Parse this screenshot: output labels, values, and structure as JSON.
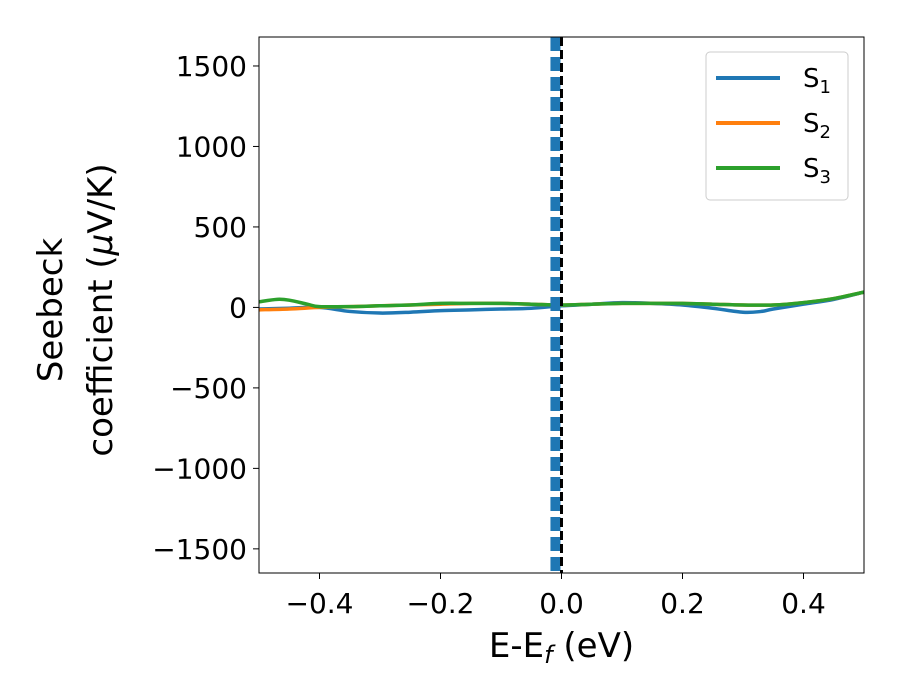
{
  "chart_data": {
    "type": "line",
    "xlabel": "E-E_f (eV)",
    "xlabel_parts": {
      "main": "E-E",
      "sub": "f",
      "unit": " (eV)"
    },
    "ylabel": "Seebeck coefficient (μV/K)",
    "ylabel_lines": {
      "line1": "Seebeck",
      "line2_prefix": "coefficient  (",
      "line2_mu": "μ",
      "line2_suffix": "V/K)"
    },
    "xlim": [
      -0.5,
      0.5
    ],
    "ylim": [
      -1650,
      1680
    ],
    "xticks": [
      -0.4,
      -0.2,
      0.0,
      0.2,
      0.4
    ],
    "xtick_labels": [
      "−0.4",
      "−0.2",
      "0.0",
      "0.2",
      "0.4"
    ],
    "yticks": [
      -1500,
      -1000,
      -500,
      0,
      500,
      1000,
      1500
    ],
    "ytick_labels": [
      "−1500",
      "−1000",
      "−500",
      "0",
      "500",
      "1000",
      "1500"
    ],
    "grid": false,
    "legend_position": "top-right",
    "vertical_lines": [
      {
        "x": -0.01,
        "style": "dashed",
        "color": "#1f77b4"
      },
      {
        "x": 0.0,
        "style": "dashed",
        "color": "#000000"
      }
    ],
    "series": [
      {
        "name": "S1",
        "label_main": "S",
        "label_sub": "1",
        "color": "#1f77b4",
        "x": [
          -0.5,
          -0.45,
          -0.4,
          -0.35,
          -0.3,
          -0.25,
          -0.2,
          -0.15,
          -0.1,
          -0.05,
          0.0,
          0.05,
          0.1,
          0.15,
          0.2,
          0.25,
          0.3,
          0.33,
          0.35,
          0.4,
          0.45,
          0.5
        ],
        "values": [
          -10,
          -5,
          0,
          -25,
          -35,
          -30,
          -20,
          -15,
          -10,
          -5,
          10,
          20,
          30,
          25,
          15,
          -5,
          -30,
          -25,
          -10,
          20,
          50,
          95
        ]
      },
      {
        "name": "S2",
        "label_main": "S",
        "label_sub": "2",
        "color": "#ff7f0e",
        "x": [
          -0.5,
          -0.45,
          -0.4,
          -0.35,
          -0.3,
          -0.25,
          -0.2,
          -0.15,
          -0.1,
          -0.05,
          0.0,
          0.05,
          0.1,
          0.15,
          0.2,
          0.25,
          0.3,
          0.35,
          0.4,
          0.45,
          0.5
        ],
        "values": [
          -15,
          -10,
          0,
          5,
          10,
          15,
          20,
          25,
          25,
          20,
          15,
          20,
          25,
          25,
          25,
          20,
          15,
          15,
          30,
          55,
          95
        ]
      },
      {
        "name": "S3",
        "label_main": "S",
        "label_sub": "3",
        "color": "#2ca02c",
        "x": [
          -0.5,
          -0.47,
          -0.45,
          -0.42,
          -0.4,
          -0.35,
          -0.3,
          -0.25,
          -0.2,
          -0.15,
          -0.1,
          -0.05,
          0.0,
          0.05,
          0.1,
          0.15,
          0.2,
          0.25,
          0.3,
          0.35,
          0.4,
          0.45,
          0.5
        ],
        "values": [
          35,
          50,
          45,
          20,
          5,
          5,
          10,
          15,
          25,
          25,
          25,
          20,
          15,
          20,
          25,
          25,
          25,
          20,
          15,
          15,
          30,
          55,
          95
        ]
      }
    ]
  }
}
